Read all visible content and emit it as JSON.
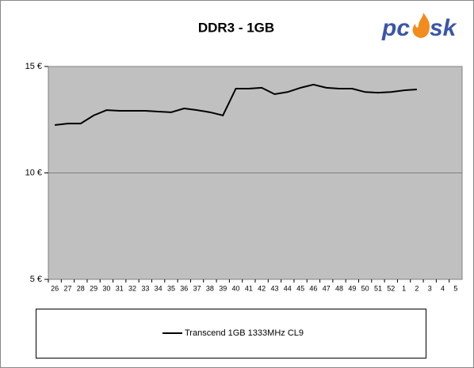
{
  "chart_data": {
    "type": "line",
    "title": "DDR3 - 1GB",
    "logo": [
      "pc",
      "sk"
    ],
    "categories": [
      "26",
      "27",
      "28",
      "29",
      "30",
      "31",
      "32",
      "33",
      "34",
      "35",
      "36",
      "37",
      "38",
      "39",
      "40",
      "41",
      "42",
      "43",
      "44",
      "45",
      "46",
      "47",
      "48",
      "49",
      "50",
      "51",
      "52",
      "1",
      "2",
      "3",
      "4",
      "5"
    ],
    "series": [
      {
        "name": "Transcend 1GB 1333MHz CL9",
        "color": "#000000",
        "values": [
          12.25,
          12.32,
          12.32,
          12.7,
          12.95,
          12.92,
          12.92,
          12.92,
          12.88,
          12.85,
          13.03,
          12.95,
          12.85,
          12.7,
          13.96,
          13.96,
          14.0,
          13.7,
          13.8,
          14.0,
          14.15,
          14.0,
          13.96,
          13.96,
          13.8,
          13.77,
          13.8,
          13.88,
          13.92,
          null,
          null,
          null
        ]
      }
    ],
    "ylim": [
      5,
      15
    ],
    "yticks": [
      {
        "value": 5,
        "label": "5 €"
      },
      {
        "value": 10,
        "label": "10 €"
      },
      {
        "value": 15,
        "label": "15 €"
      }
    ],
    "grid": true,
    "plot_color": "#c0c0c0",
    "legend": "bottom"
  }
}
